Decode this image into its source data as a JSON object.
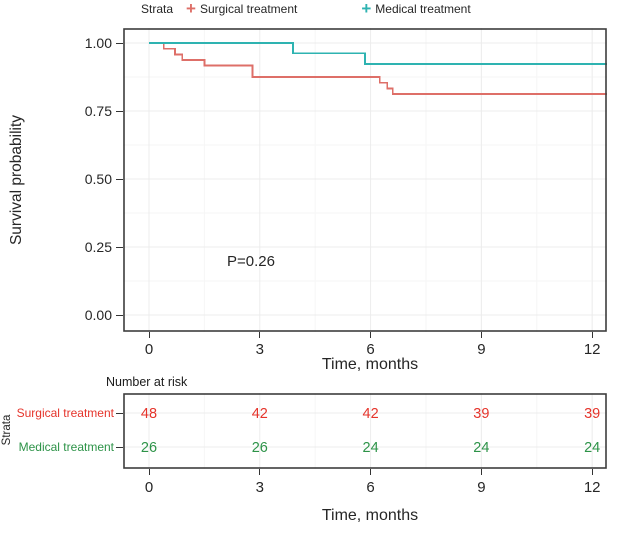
{
  "legend": {
    "title": "Strata",
    "items": [
      {
        "label": "Surgical treatment",
        "color": "#de6f68"
      },
      {
        "label": "Medical treatment",
        "color": "#2eb3b1"
      }
    ]
  },
  "y_axis": {
    "label": "Survival probability",
    "ticks": [
      "1.00",
      "0.75",
      "0.50",
      "0.25",
      "0.00"
    ]
  },
  "x_axis": {
    "label": "Time, months",
    "ticks": [
      "0",
      "3",
      "6",
      "9",
      "12"
    ]
  },
  "annotation": {
    "p_value": "P=0.26"
  },
  "risk_table": {
    "title": "Number at risk",
    "axis_label": "Strata",
    "x_label": "Time, months",
    "x_ticks": [
      "0",
      "3",
      "6",
      "9",
      "12"
    ],
    "rows": [
      {
        "label": "Surgical treatment",
        "color": "#e5342b",
        "values": [
          "48",
          "42",
          "42",
          "39",
          "39"
        ]
      },
      {
        "label": "Medical treatment",
        "color": "#2d9348",
        "values": [
          "26",
          "26",
          "24",
          "24",
          "24"
        ]
      }
    ]
  },
  "chart_data": {
    "type": "line",
    "subtype": "kaplan-meier-step",
    "title": "",
    "xlabel": "Time, months",
    "ylabel": "Survival probability",
    "xlim": [
      -0.7,
      12.4
    ],
    "ylim": [
      -0.06,
      1.055
    ],
    "x_ticks": [
      0,
      3,
      6,
      9,
      12
    ],
    "y_ticks": [
      1.0,
      0.75,
      0.5,
      0.25,
      0.0
    ],
    "grid": true,
    "legend_position": "top",
    "p_value": "P=0.26",
    "series": [
      {
        "name": "Surgical treatment",
        "color": "#de6f68",
        "n_at_risk": [
          48,
          42,
          42,
          39,
          39
        ],
        "steps": [
          [
            0,
            1.0
          ],
          [
            0.4,
            0.979
          ],
          [
            0.7,
            0.958
          ],
          [
            0.9,
            0.938
          ],
          [
            1.5,
            0.917
          ],
          [
            2.8,
            0.875
          ],
          [
            6.25,
            0.854
          ],
          [
            6.45,
            0.833
          ],
          [
            6.6,
            0.813
          ]
        ],
        "end_x": 12.4
      },
      {
        "name": "Medical treatment",
        "color": "#2eb3b1",
        "n_at_risk": [
          26,
          26,
          24,
          24,
          24
        ],
        "steps": [
          [
            0,
            1.0
          ],
          [
            3.9,
            0.962
          ],
          [
            5.85,
            0.923
          ]
        ],
        "end_x": 12.4
      }
    ]
  }
}
